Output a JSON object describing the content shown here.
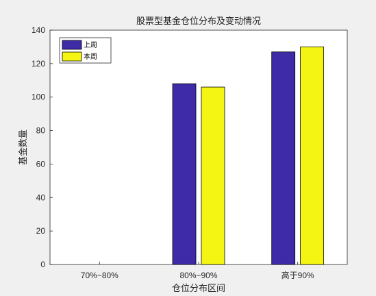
{
  "chart_data": {
    "type": "bar",
    "title": "股票型基金仓位分布及变动情况",
    "xlabel": "仓位分布区间",
    "ylabel": "基金数量",
    "categories": [
      "70%~80%",
      "80%~90%",
      "高于90%"
    ],
    "series": [
      {
        "name": "上周",
        "values": [
          0,
          108,
          127
        ],
        "color": "#3d2ba8"
      },
      {
        "name": "本周",
        "values": [
          0,
          106,
          130
        ],
        "color": "#f5f514"
      }
    ],
    "ylim": [
      0,
      140
    ],
    "yticks": [
      0,
      20,
      40,
      60,
      80,
      100,
      120,
      140
    ],
    "grid": false,
    "legend_position": "top-left"
  }
}
